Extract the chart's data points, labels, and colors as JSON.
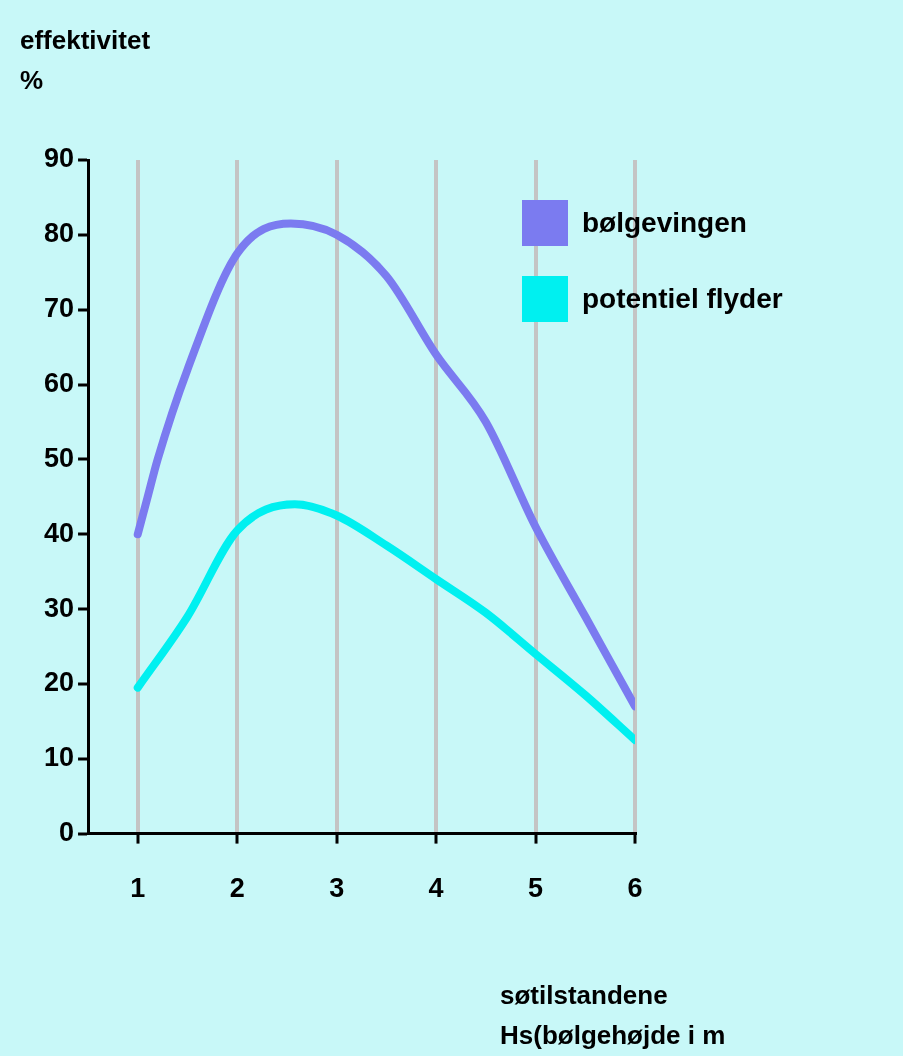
{
  "chart_data": {
    "type": "line",
    "ylabel": "effektivitet\n%",
    "xlabel": "søtilstandene\nHs(bølgehøjde i m",
    "xlim": [
      0.5,
      6
    ],
    "xticks": [
      1,
      2,
      3,
      4,
      5,
      6
    ],
    "ylim": [
      0,
      90
    ],
    "yticks": [
      0,
      10,
      20,
      30,
      40,
      50,
      60,
      70,
      80,
      90
    ],
    "grid": "x",
    "legend": "top right",
    "marker": "none",
    "line_style": "solid",
    "series": [
      {
        "name": "bølgevingen",
        "color": "#7b7bf0",
        "x": [
          1,
          1.1,
          1.2,
          1.5,
          2,
          2.54,
          3,
          3.5,
          4,
          4.5,
          5,
          5.5,
          6
        ],
        "values": [
          40,
          45,
          50,
          62,
          77.5,
          81.5,
          80,
          74.5,
          64,
          55,
          41,
          29,
          17
        ]
      },
      {
        "name": "potentiel flyder",
        "color": "#00f0f0",
        "x": [
          1,
          1.5,
          2,
          2.58,
          3,
          3.5,
          4,
          4.5,
          5,
          5.5,
          6
        ],
        "values": [
          19.5,
          29,
          40.5,
          44,
          42.5,
          38.5,
          34,
          29.5,
          24,
          18.5,
          12.5
        ]
      }
    ]
  }
}
